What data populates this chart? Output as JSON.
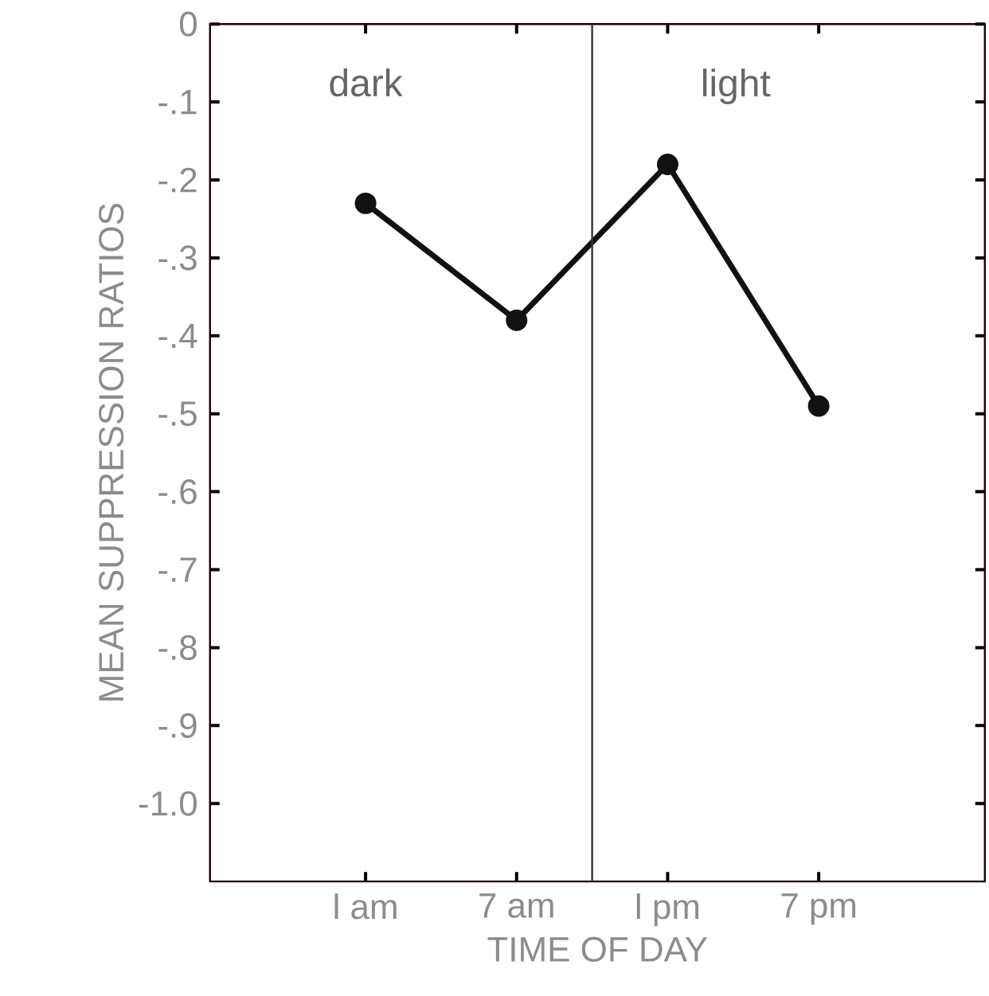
{
  "chart_data": {
    "type": "line",
    "xlabel": "TIME OF DAY",
    "ylabel": "MEAN SUPPRESSION RATIOS",
    "categories": [
      "l am",
      "7 am",
      "l pm",
      "7 pm"
    ],
    "series": [
      {
        "color": "#111111",
        "values": [
          -0.23,
          -0.38,
          -0.18,
          -0.49
        ]
      }
    ],
    "marker": "circle",
    "line_style": "solid",
    "grid": false,
    "ylim": [
      -1.1,
      0
    ],
    "yticks": [
      {
        "value": 0,
        "label": "0"
      },
      {
        "value": -0.1,
        "label": "-.1"
      },
      {
        "value": -0.2,
        "label": "-.2"
      },
      {
        "value": -0.3,
        "label": "-.3"
      },
      {
        "value": -0.4,
        "label": "-.4"
      },
      {
        "value": -0.5,
        "label": "-.5"
      },
      {
        "value": -0.6,
        "label": "-.6"
      },
      {
        "value": -0.7,
        "label": "-.7"
      },
      {
        "value": -0.8,
        "label": "-.8"
      },
      {
        "value": -0.9,
        "label": "-.9"
      },
      {
        "value": -1.0,
        "label": "-1.0"
      }
    ],
    "annotations": [
      "dark",
      "light"
    ]
  }
}
